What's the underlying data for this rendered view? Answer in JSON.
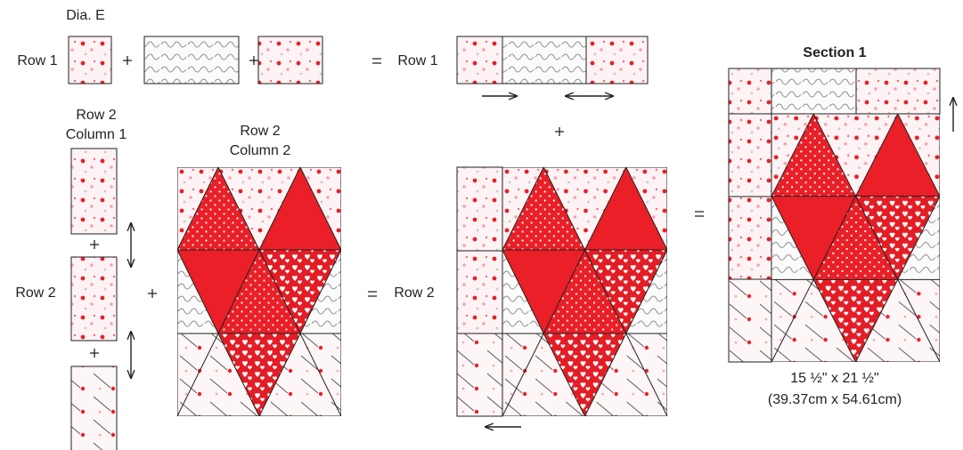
{
  "figure_label": "Dia. E",
  "row1": {
    "left_label": "Row 1",
    "right_label": "Row 1"
  },
  "row2": {
    "column1_label": [
      "Row 2",
      "Column 1"
    ],
    "column2_label": [
      "Row 2",
      "Column 2"
    ],
    "left_label": "Row 2",
    "right_label": "Row 2"
  },
  "section": {
    "title": "Section 1",
    "size_inches": "15 ½\" x 21 ½\"",
    "size_cm": "(39.37cm x 54.61cm)"
  }
}
